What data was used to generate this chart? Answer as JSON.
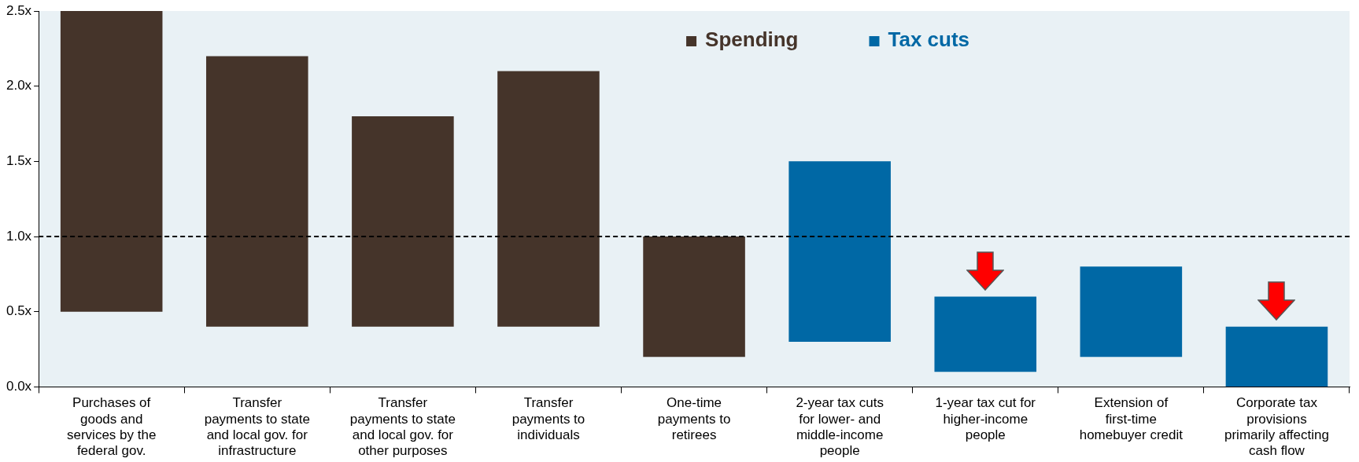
{
  "chart_data": {
    "type": "bar",
    "categories": [
      "Purchases of goods and services by the federal gov.",
      "Transfer payments to state and local gov. for infrastructure",
      "Transfer payments to state and local gov. for other purposes",
      "Transfer payments to individuals",
      "One-time payments to retirees",
      "2-year tax cuts for lower- and middle-income people",
      "1-year tax cut for higher-income people",
      "Extension of first-time homebuyer credit",
      "Corporate tax provisions primarily affecting cash flow"
    ],
    "series": [
      {
        "name": "Spending",
        "color": "#45342a",
        "values": [
          2.0,
          1.8,
          1.4,
          1.7,
          0.8,
          null,
          null,
          null,
          null
        ],
        "base": [
          0.5,
          0.4,
          0.4,
          0.4,
          0.2,
          null,
          null,
          null,
          null
        ]
      },
      {
        "name": "Tax cuts",
        "color": "#0068a5",
        "values": [
          null,
          null,
          null,
          null,
          null,
          1.2,
          0.5,
          0.6,
          0.4
        ],
        "base": [
          null,
          null,
          null,
          null,
          null,
          0.3,
          0.1,
          0.2,
          0.0
        ]
      }
    ],
    "ylim": [
      0,
      2.5
    ],
    "yticks": [
      {
        "value": 0,
        "label": "0.0x"
      },
      {
        "value": 0.5,
        "label": "0.5x"
      },
      {
        "value": 1,
        "label": "1.0x"
      },
      {
        "value": 1.5,
        "label": "1.5x"
      },
      {
        "value": 2,
        "label": "2.0x"
      },
      {
        "value": 2.5,
        "label": "2.5x"
      }
    ],
    "ref_lines": [
      {
        "axis": "y",
        "value": 1.0,
        "line_style": "dashed",
        "color": "#000000"
      }
    ],
    "legend": "top"
  }
}
